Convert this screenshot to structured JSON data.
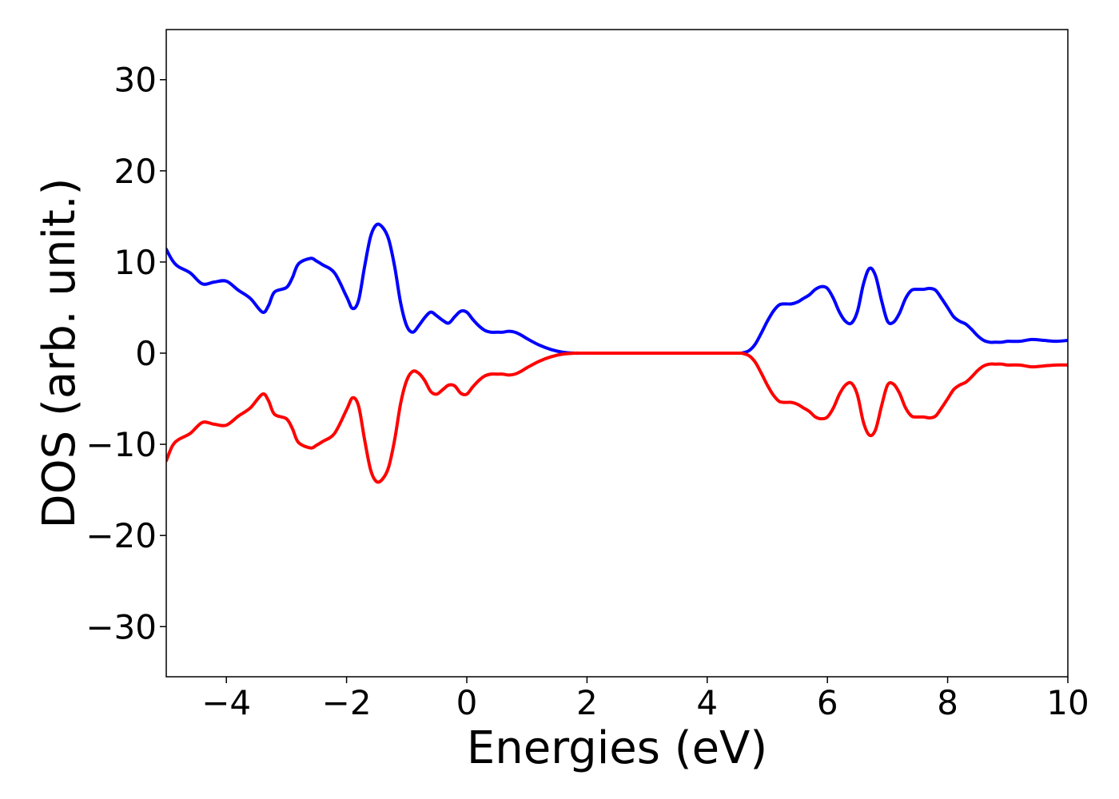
{
  "chart_data": {
    "type": "line",
    "title": "",
    "xlabel": "Energies (eV)",
    "ylabel": "DOS (arb. unit.)",
    "xlim": [
      -5,
      10
    ],
    "ylim": [
      -35.5,
      35.5
    ],
    "x_ticks": [
      -4,
      -2,
      0,
      2,
      4,
      6,
      8,
      10
    ],
    "y_ticks": [
      -30,
      -20,
      -10,
      0,
      10,
      20,
      30
    ],
    "x_tick_labels": [
      "−4",
      "−2",
      "0",
      "2",
      "4",
      "6",
      "8",
      "10"
    ],
    "y_tick_labels": [
      "−30",
      "−20",
      "−10",
      "0",
      "10",
      "20",
      "30"
    ],
    "grid": false,
    "legend": "none",
    "series": [
      {
        "color": "#0000ff",
        "x": [
          -5.0,
          -4.9,
          -4.8,
          -4.6,
          -4.4,
          -4.2,
          -4.0,
          -3.8,
          -3.6,
          -3.4,
          -3.3,
          -3.2,
          -3.0,
          -2.9,
          -2.8,
          -2.6,
          -2.5,
          -2.4,
          -2.2,
          -2.0,
          -1.9,
          -1.8,
          -1.7,
          -1.6,
          -1.5,
          -1.4,
          -1.3,
          -1.2,
          -1.1,
          -1.0,
          -0.9,
          -0.8,
          -0.7,
          -0.6,
          -0.5,
          -0.4,
          -0.3,
          -0.2,
          -0.1,
          0.0,
          0.1,
          0.2,
          0.3,
          0.4,
          0.5,
          0.6,
          0.7,
          0.8,
          0.9,
          1.0,
          1.2,
          1.4,
          1.6,
          1.8,
          1.9,
          2.0,
          2.1,
          2.2,
          2.3,
          2.5,
          3.0,
          3.5,
          4.0,
          4.5,
          4.6,
          4.7,
          4.8,
          4.9,
          5.0,
          5.1,
          5.2,
          5.3,
          5.4,
          5.5,
          5.6,
          5.7,
          5.8,
          5.9,
          6.0,
          6.1,
          6.2,
          6.3,
          6.4,
          6.5,
          6.6,
          6.7,
          6.8,
          6.9,
          7.0,
          7.1,
          7.2,
          7.3,
          7.4,
          7.5,
          7.6,
          7.7,
          7.8,
          7.9,
          8.0,
          8.1,
          8.2,
          8.3,
          8.4,
          8.5,
          8.6,
          8.7,
          8.8,
          8.9,
          9.0,
          9.2,
          9.4,
          9.6,
          9.8,
          10.0
        ],
        "y": [
          11.4,
          10.2,
          9.5,
          8.8,
          7.6,
          7.8,
          7.9,
          6.9,
          6.0,
          4.5,
          5.2,
          6.7,
          7.2,
          8.3,
          9.8,
          10.4,
          10.1,
          9.7,
          8.8,
          6.2,
          4.9,
          5.8,
          9.5,
          12.8,
          14.1,
          13.8,
          12.5,
          9.5,
          5.5,
          3.0,
          2.3,
          3.0,
          3.9,
          4.5,
          4.1,
          3.6,
          3.3,
          4.0,
          4.6,
          4.5,
          3.7,
          3.0,
          2.5,
          2.3,
          2.3,
          2.3,
          2.4,
          2.3,
          2.0,
          1.6,
          0.9,
          0.4,
          0.1,
          0.0,
          0.0,
          0.0,
          0.0,
          0.0,
          0.0,
          0.0,
          0.0,
          0.0,
          0.0,
          0.0,
          0.05,
          0.3,
          1.0,
          2.2,
          3.5,
          4.6,
          5.3,
          5.4,
          5.4,
          5.6,
          6.0,
          6.4,
          7.0,
          7.3,
          7.1,
          6.0,
          4.5,
          3.5,
          3.3,
          4.6,
          7.6,
          9.3,
          8.5,
          5.8,
          3.5,
          3.4,
          4.4,
          6.0,
          6.9,
          7.0,
          7.0,
          7.1,
          6.9,
          6.0,
          5.0,
          4.0,
          3.5,
          3.2,
          2.6,
          1.9,
          1.4,
          1.2,
          1.2,
          1.2,
          1.3,
          1.3,
          1.5,
          1.4,
          1.3,
          1.4
        ],
        "line_width": 4
      },
      {
        "color": "#ff0000",
        "x": [
          -5.0,
          -4.9,
          -4.8,
          -4.6,
          -4.4,
          -4.2,
          -4.0,
          -3.8,
          -3.6,
          -3.4,
          -3.3,
          -3.2,
          -3.0,
          -2.9,
          -2.8,
          -2.6,
          -2.5,
          -2.4,
          -2.2,
          -2.0,
          -1.9,
          -1.8,
          -1.7,
          -1.6,
          -1.5,
          -1.4,
          -1.3,
          -1.2,
          -1.1,
          -1.0,
          -0.9,
          -0.8,
          -0.7,
          -0.6,
          -0.5,
          -0.4,
          -0.3,
          -0.2,
          -0.1,
          0.0,
          0.1,
          0.2,
          0.3,
          0.4,
          0.5,
          0.6,
          0.7,
          0.8,
          0.9,
          1.0,
          1.2,
          1.4,
          1.6,
          1.8,
          1.9,
          2.0,
          2.1,
          2.2,
          2.3,
          2.5,
          3.0,
          3.5,
          4.0,
          4.5,
          4.6,
          4.7,
          4.8,
          4.9,
          5.0,
          5.1,
          5.2,
          5.3,
          5.4,
          5.5,
          5.6,
          5.7,
          5.8,
          5.9,
          6.0,
          6.1,
          6.2,
          6.3,
          6.4,
          6.5,
          6.6,
          6.7,
          6.8,
          6.9,
          7.0,
          7.1,
          7.2,
          7.3,
          7.4,
          7.5,
          7.6,
          7.7,
          7.8,
          7.9,
          8.0,
          8.1,
          8.2,
          8.3,
          8.4,
          8.5,
          8.6,
          8.7,
          8.8,
          8.9,
          9.0,
          9.2,
          9.4,
          9.6,
          9.8,
          10.0
        ],
        "y": [
          -11.8,
          -10.2,
          -9.5,
          -8.8,
          -7.6,
          -7.8,
          -7.9,
          -6.9,
          -6.0,
          -4.5,
          -5.2,
          -6.7,
          -7.2,
          -8.3,
          -9.8,
          -10.4,
          -10.1,
          -9.7,
          -8.8,
          -6.2,
          -4.9,
          -5.8,
          -9.5,
          -12.8,
          -14.1,
          -13.8,
          -12.5,
          -9.5,
          -5.5,
          -3.0,
          -2.0,
          -2.2,
          -3.0,
          -4.2,
          -4.5,
          -4.0,
          -3.5,
          -3.6,
          -4.4,
          -4.5,
          -3.7,
          -3.0,
          -2.5,
          -2.3,
          -2.3,
          -2.3,
          -2.4,
          -2.3,
          -2.0,
          -1.6,
          -0.9,
          -0.4,
          -0.1,
          0.0,
          0.0,
          0.0,
          0.0,
          0.0,
          0.0,
          0.0,
          0.0,
          0.0,
          0.0,
          0.0,
          -0.05,
          -0.3,
          -1.0,
          -2.2,
          -3.5,
          -4.6,
          -5.3,
          -5.4,
          -5.4,
          -5.6,
          -6.0,
          -6.4,
          -7.0,
          -7.2,
          -7.0,
          -6.0,
          -4.5,
          -3.5,
          -3.3,
          -4.6,
          -7.6,
          -9.0,
          -8.4,
          -5.8,
          -3.5,
          -3.4,
          -4.4,
          -6.0,
          -6.9,
          -7.0,
          -7.0,
          -7.1,
          -6.9,
          -6.0,
          -5.0,
          -4.0,
          -3.5,
          -3.2,
          -2.6,
          -1.9,
          -1.4,
          -1.2,
          -1.2,
          -1.2,
          -1.3,
          -1.3,
          -1.5,
          -1.4,
          -1.3,
          -1.3
        ],
        "line_width": 4
      }
    ]
  }
}
